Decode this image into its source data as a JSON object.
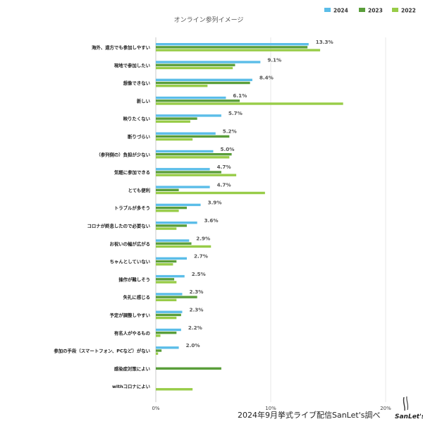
{
  "chart_data": {
    "type": "bar",
    "orientation": "horizontal",
    "title": "オンライン参列イメージ",
    "categories": [
      "海外、遠方でも参加しやすい",
      "現地で参加したい",
      "想像できない",
      "新しい",
      "映りたくない",
      "断りづらい",
      "（参列側の）負担が少ない",
      "気軽に参加できる",
      "とても便利",
      "トラブルが多そう",
      "コロナが終息したので必要ない",
      "お祝いの幅が広がる",
      "ちゃんとしていない",
      "操作が難しそう",
      "失礼に感じる",
      "予定が調整しやすい",
      "有名人がやるもの",
      "参加の手段（スマートフォン、PCなど）がない",
      "感染症対策によい",
      "withコロナによい"
    ],
    "series": [
      {
        "name": "2024",
        "color": "#5bbde8",
        "values": [
          13.3,
          9.1,
          8.4,
          6.1,
          5.7,
          5.2,
          5.0,
          4.7,
          4.7,
          3.9,
          3.6,
          2.9,
          2.7,
          2.5,
          2.3,
          2.3,
          2.2,
          2.0,
          0,
          0
        ]
      },
      {
        "name": "2023",
        "color": "#5a9e3a",
        "values": [
          13.2,
          6.9,
          8.2,
          7.3,
          3.6,
          6.4,
          6.6,
          5.7,
          2.0,
          2.7,
          2.7,
          3.1,
          1.8,
          1.6,
          3.6,
          2.2,
          1.8,
          0.5,
          5.7,
          0
        ]
      },
      {
        "name": "2022",
        "color": "#98cc48",
        "values": [
          14.3,
          6.7,
          4.5,
          16.3,
          3.0,
          3.2,
          6.4,
          7.0,
          9.5,
          2.0,
          1.8,
          4.8,
          1.5,
          1.8,
          1.8,
          1.8,
          0.4,
          0.2,
          0,
          3.2
        ]
      }
    ],
    "value_labels": [
      "13.3%",
      "9.1%",
      "8.4%",
      "6.1%",
      "5.7%",
      "5.2%",
      "5.0%",
      "4.7%",
      "4.7%",
      "3.9%",
      "3.6%",
      "2.9%",
      "2.7%",
      "2.5%",
      "2.3%",
      "2.3%",
      "2.2%",
      "2.0%",
      "",
      ""
    ],
    "xlim": [
      0,
      20
    ],
    "x_ticks": [
      "0%",
      "10%",
      "20%"
    ],
    "grid": true,
    "legend_position": "top-right"
  },
  "source_note": "2024年9月挙式ライブ配信SanLet's調べ",
  "logo": {
    "text": "SanLet's"
  }
}
